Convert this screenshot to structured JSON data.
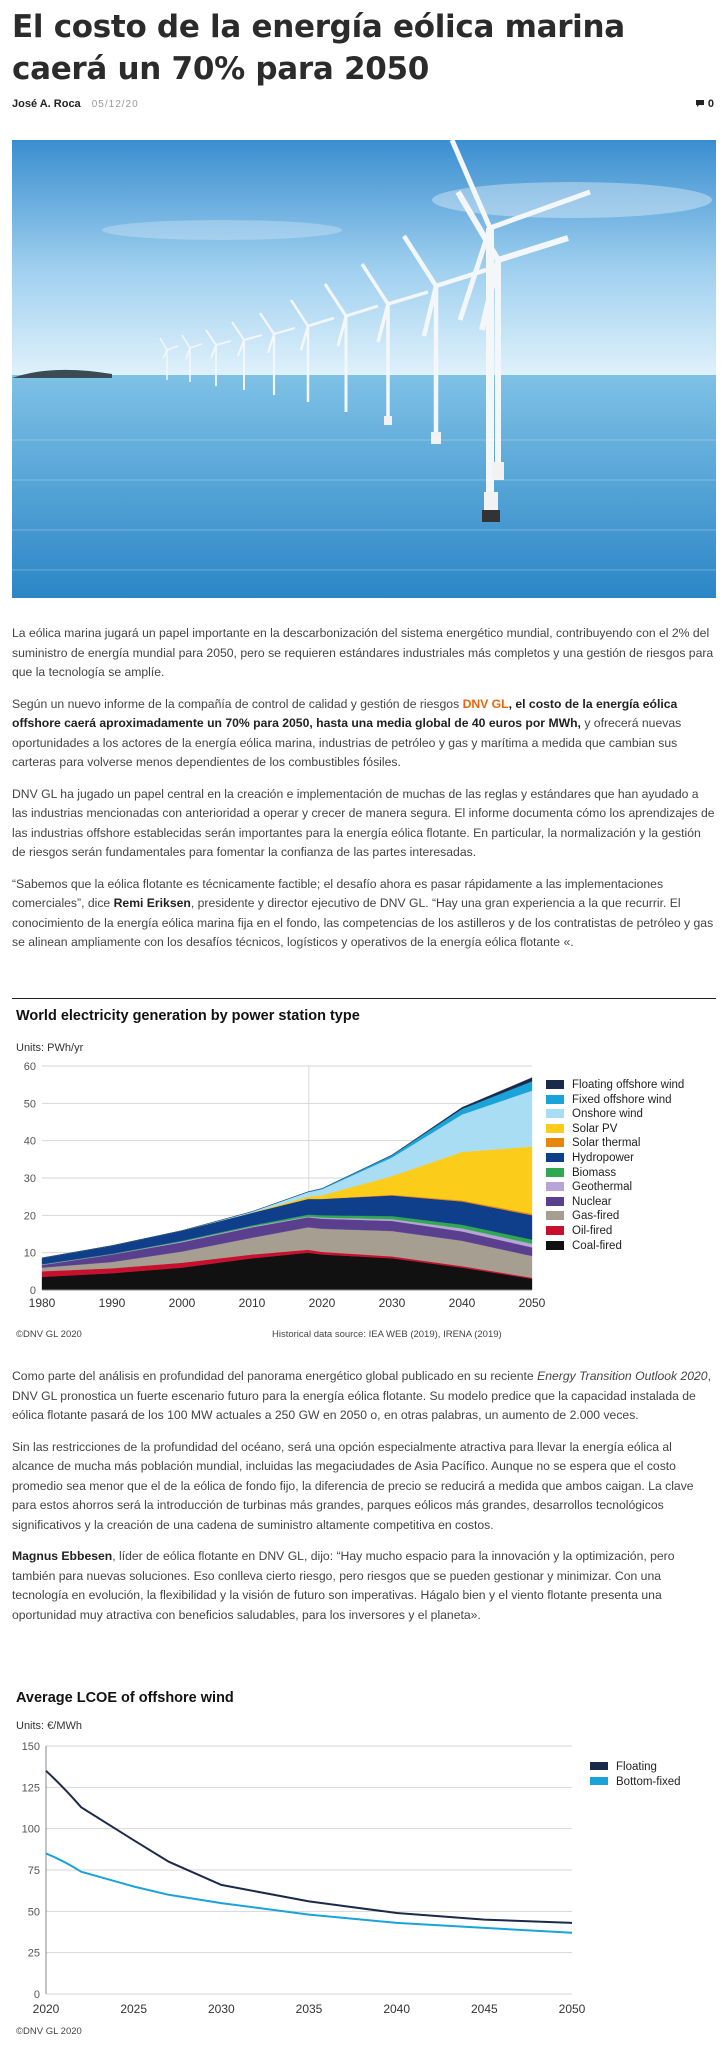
{
  "article": {
    "title": "El costo de la energía eólica marina caerá un 70% para 2050",
    "author": "José A. Roca",
    "date": "05/12/20",
    "comments_count": "0",
    "paragraphs": {
      "p1": "La eólica marina  jugará un papel importante en la descarbonización del sistema energético mundial, contribuyendo con el 2% del suministro de energía mundial para 2050, pero se requieren estándares industriales más completos y una gestión de riesgos para que la tecnología se amplíe.",
      "p2a": "Según un nuevo informe de la compañía de control de calidad y gestión de riesgos ",
      "p2_brand": "DNV GL",
      "p2b": ", el costo de la energía eólica offshore caerá aproximadamente un 70% para 2050, hasta una media global de 40 euros por MWh,",
      "p2c": " y ofrecerá nuevas oportunidades a los actores de la energía eólica marina, industrias de petróleo y gas y marítima a medida que cambian sus carteras para volverse menos dependientes de los combustibles fósiles.",
      "p3": "DNV GL ha jugado un papel central en la creación e implementación de muchas de las reglas y estándares que han ayudado a las industrias mencionadas con anterioridad a operar y crecer de manera segura. El informe documenta cómo los aprendizajes de las industrias offshore establecidas serán importantes para la energía eólica flotante. En particular, la normalización y la gestión de riesgos serán fundamentales para fomentar la confianza de las partes interesadas.",
      "p4a": "“Sabemos que la eólica flotante es técnicamente factible; el desafío ahora es pasar rápidamente a las implementaciones comerciales”, dice ",
      "p4_name": "Remi Eriksen",
      "p4b": ", presidente y director ejecutivo de DNV GL. “Hay una gran experiencia a la que recurrir. El conocimiento de la energía eólica marina fija en el fondo, las competencias de los astilleros y de los contratistas de petróleo y gas se alinean ampliamente con los desafíos técnicos, logísticos y operativos de la energía eólica flotante «.",
      "p5a": "Como parte del análisis en profundidad del panorama energético global publicado en su reciente ",
      "p5_em": "Energy Transition Outlook 2020",
      "p5b": ", DNV GL pronostica un fuerte escenario futuro para la energía eólica flotante. Su modelo predice que la capacidad instalada de eólica flotante pasará de los 100 MW actuales a 250 GW en 2050 o, en otras palabras, un aumento de 2.000 veces.",
      "p6": "Sin las restricciones de la profundidad del océano, será una opción especialmente atractiva para llevar la energía eólica al alcance de mucha más población mundial, incluidas las megaciudades de Asia Pacífico. Aunque no se espera que el costo promedio sea menor que el de la eólica de fondo fijo, la diferencia de precio se reducirá a medida que ambos caigan. La clave para estos ahorros será la introducción de turbinas más grandes, parques eólicos más grandes, desarrollos tecnológicos significativos y la creación de una cadena de suministro altamente competitiva en costos.",
      "p7_name": "Magnus Ebbesen",
      "p7": ", líder de eólica flotante en DNV GL, dijo: “Hay mucho espacio para la innovación y la optimización, pero también para nuevas soluciones. Eso conlleva cierto riesgo, pero riesgos que se pueden gestionar y minimizar. Con una tecnología en evolución, la flexibilidad y la visión de futuro son imperativas. Hágalo bien y el viento flotante presenta una oportunidad muy atractiva con beneficios saludables, para los inversores y el planeta»."
    }
  },
  "chart_data": [
    {
      "type": "area",
      "title": "World electricity generation by power station type",
      "units_label": "Units: PWh/yr",
      "x": [
        1980,
        1990,
        2000,
        2010,
        2018,
        2020,
        2030,
        2040,
        2050
      ],
      "x_ticks": [
        "1980",
        "1990",
        "2000",
        "2010",
        "2020",
        "2030",
        "2040",
        "2050"
      ],
      "y_ticks": [
        "0",
        "10",
        "20",
        "30",
        "40",
        "50",
        "60"
      ],
      "ylim": [
        0,
        60
      ],
      "xlim": [
        1980,
        2050
      ],
      "stacked": true,
      "legend_position": "right",
      "series": [
        {
          "name": "Coal-fired",
          "color": "#111111",
          "values": [
            3.5,
            4.5,
            6.0,
            8.5,
            10.0,
            9.5,
            8.5,
            6.0,
            3.0
          ]
        },
        {
          "name": "Oil-fired",
          "color": "#c8102e",
          "values": [
            1.5,
            1.3,
            1.3,
            1.0,
            0.8,
            0.7,
            0.5,
            0.4,
            0.3
          ]
        },
        {
          "name": "Gas-fired",
          "color": "#a69e90",
          "values": [
            1.0,
            1.7,
            3.0,
            4.5,
            6.0,
            6.2,
            6.8,
            6.8,
            5.8
          ]
        },
        {
          "name": "Nuclear",
          "color": "#5b3f8f",
          "values": [
            0.7,
            2.0,
            2.5,
            2.8,
            2.7,
            2.7,
            2.7,
            2.5,
            2.3
          ]
        },
        {
          "name": "Geothermal",
          "color": "#b9a4d6",
          "values": [
            0.1,
            0.1,
            0.2,
            0.2,
            0.2,
            0.3,
            0.5,
            0.8,
            1.0
          ]
        },
        {
          "name": "Biomass",
          "color": "#2fa84f",
          "values": [
            0.1,
            0.1,
            0.2,
            0.3,
            0.5,
            0.6,
            0.8,
            1.0,
            1.1
          ]
        },
        {
          "name": "Hydropower",
          "color": "#0f3e8a",
          "values": [
            1.7,
            2.2,
            2.7,
            3.4,
            4.2,
            4.4,
            5.5,
            6.2,
            6.5
          ]
        },
        {
          "name": "Solar thermal",
          "color": "#e8850c",
          "values": [
            0,
            0,
            0,
            0,
            0,
            0,
            0.2,
            0.3,
            0.4
          ]
        },
        {
          "name": "Solar PV",
          "color": "#fccc1b",
          "values": [
            0,
            0,
            0,
            0,
            0.6,
            1.0,
            5.0,
            13.0,
            18.0
          ]
        },
        {
          "name": "Onshore wind",
          "color": "#a9ddf3",
          "values": [
            0,
            0,
            0,
            0.3,
            1.2,
            1.6,
            5.0,
            10.0,
            15.0
          ]
        },
        {
          "name": "Fixed offshore wind",
          "color": "#1aa3d9",
          "values": [
            0,
            0,
            0,
            0,
            0.1,
            0.2,
            0.6,
            1.5,
            2.5
          ]
        },
        {
          "name": "Floating offshore wind",
          "color": "#1b2a4a",
          "values": [
            0,
            0,
            0,
            0,
            0,
            0,
            0.1,
            0.4,
            1.0
          ]
        }
      ],
      "footnote_left": "©DNV GL 2020",
      "footnote_right": "Historical data source: IEA WEB (2019), IRENA (2019)",
      "colors": {
        "grid": "#d6d6d6",
        "divider": "#222222",
        "historical_band": "#e6e6e6"
      }
    },
    {
      "type": "line",
      "title": "Average LCOE of offshore wind",
      "units_label": "Units: €/MWh",
      "x": [
        2020,
        2022,
        2025,
        2027,
        2030,
        2035,
        2040,
        2045,
        2050
      ],
      "x_ticks": [
        "2020",
        "2025",
        "2030",
        "2035",
        "2040",
        "2045",
        "2050"
      ],
      "y_ticks": [
        "0",
        "25",
        "50",
        "75",
        "100",
        "125",
        "150"
      ],
      "xlim": [
        2020,
        2050
      ],
      "ylim": [
        0,
        150
      ],
      "legend_position": "top-right",
      "series": [
        {
          "name": "Floating",
          "color": "#1b2a4a",
          "values": [
            135,
            113,
            93,
            80,
            66,
            56,
            49,
            45,
            43
          ]
        },
        {
          "name": "Bottom-fixed",
          "color": "#1aa3d9",
          "values": [
            85,
            74,
            65,
            60,
            55,
            48,
            43,
            40,
            37
          ]
        }
      ],
      "footnote_left": "©DNV GL 2020",
      "colors": {
        "grid": "#d6d6d6"
      }
    }
  ],
  "icons": {
    "comments": "comment-bubble-icon"
  },
  "colors": {
    "accent": "#e8650e",
    "title": "#2b2b2b",
    "text": "#444444"
  }
}
